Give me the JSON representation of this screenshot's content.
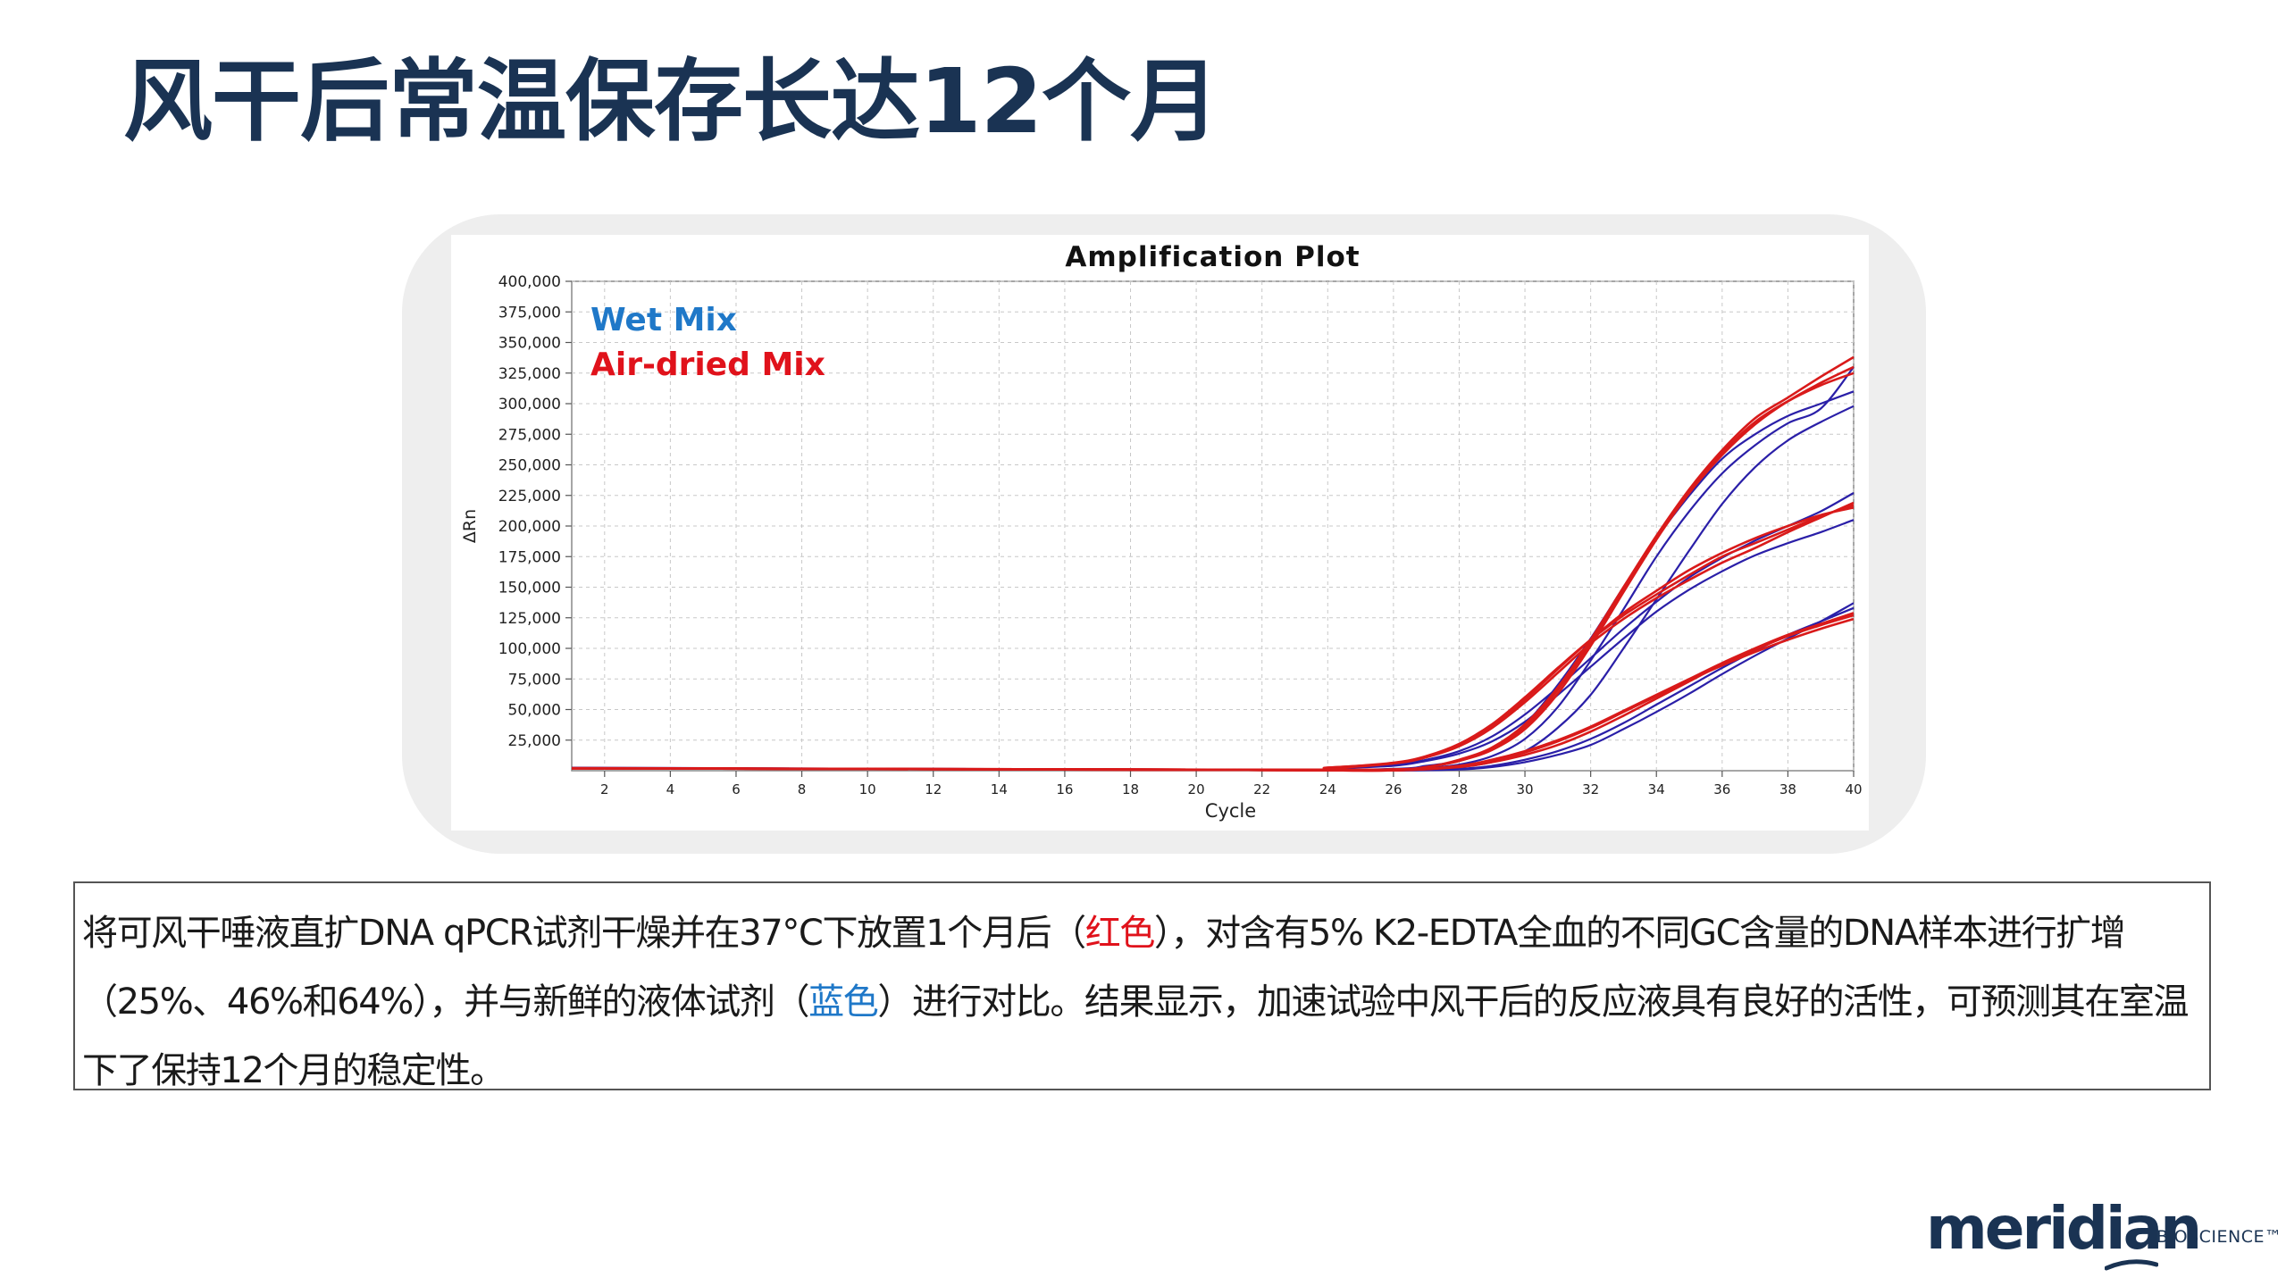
{
  "slide": {
    "title": "风干后常温保存长达12个月"
  },
  "description": {
    "part1": "将可风干唾液直扩DNA qPCR试剂干燥并在37°C下放置1个月后（",
    "red_word": "红色",
    "part2": "），对含有5% K2-EDTA全血的不同GC含量的DNA样本进行扩增（25%、46%和64%），并与新鲜的液体试剂（",
    "blue_word": "蓝色",
    "part3": "）进行对比。结果显示，加速试验中风干后的反应液具有良好的活性，可预测其在室温下了保持12个月的稳定性。"
  },
  "logo": {
    "word": "meridian",
    "sub": "BIOSCIENCE™"
  },
  "colors": {
    "title": "#1a3353",
    "wet_mix": "#1f78c8",
    "air_dried_mix": "#e0121b",
    "wet_curve": "#2a1fa8",
    "dried_curve": "#d91a1a"
  },
  "chart_data": {
    "type": "line",
    "title": "Amplification Plot",
    "xlabel": "Cycle",
    "ylabel": "ΔRn",
    "xlim": [
      1,
      40
    ],
    "ylim": [
      0,
      400000
    ],
    "x_ticks": [
      2,
      4,
      6,
      8,
      10,
      12,
      14,
      16,
      18,
      20,
      22,
      24,
      26,
      28,
      30,
      32,
      34,
      36,
      38,
      40
    ],
    "y_ticks": [
      25000,
      50000,
      75000,
      100000,
      125000,
      150000,
      175000,
      200000,
      225000,
      250000,
      275000,
      300000,
      325000,
      350000,
      375000,
      400000
    ],
    "y_tick_labels": [
      "25,000",
      "50,000",
      "75,000",
      "100,000",
      "125,000",
      "150,000",
      "175,000",
      "200,000",
      "225,000",
      "250,000",
      "275,000",
      "300,000",
      "325,000",
      "350,000",
      "375,000",
      "400,000"
    ],
    "grid": true,
    "legend": {
      "placement": "top-left",
      "entries": [
        {
          "label": "Wet Mix",
          "color": "#1f78c8"
        },
        {
          "label": "Air-dried Mix",
          "color": "#e0121b"
        }
      ]
    },
    "series": [
      {
        "group": "wet",
        "x": [
          1,
          22,
          24,
          26,
          27,
          28,
          29,
          30,
          31,
          32,
          33,
          34,
          35,
          36,
          37,
          38,
          39,
          40
        ],
        "y": [
          2000,
          800,
          2000,
          4000,
          8000,
          14000,
          24000,
          40000,
          62000,
          85000,
          108000,
          130000,
          148000,
          163000,
          176000,
          186000,
          195000,
          205000
        ]
      },
      {
        "group": "wet",
        "x": [
          1,
          22,
          24,
          26,
          27,
          28,
          29,
          30,
          31,
          32,
          33,
          34,
          35,
          36,
          37,
          38,
          39,
          40
        ],
        "y": [
          2500,
          800,
          2000,
          5000,
          9000,
          16000,
          28000,
          46000,
          68000,
          92000,
          116000,
          138000,
          158000,
          174000,
          188000,
          200000,
          212000,
          227000
        ]
      },
      {
        "group": "wet",
        "x": [
          1,
          22,
          26,
          27,
          28,
          29,
          30,
          31,
          32,
          33,
          34,
          35,
          36,
          37,
          38,
          39,
          40
        ],
        "y": [
          2200,
          800,
          1500,
          4000,
          8000,
          18000,
          38000,
          70000,
          108000,
          150000,
          190000,
          225000,
          255000,
          275000,
          290000,
          300000,
          310000
        ]
      },
      {
        "group": "wet",
        "x": [
          1,
          22,
          26,
          27,
          28,
          29,
          30,
          31,
          32,
          33,
          34,
          35,
          36,
          37,
          38,
          39,
          40
        ],
        "y": [
          2000,
          800,
          1000,
          2000,
          5000,
          12000,
          26000,
          52000,
          90000,
          132000,
          175000,
          212000,
          243000,
          266000,
          284000,
          296000,
          330000
        ]
      },
      {
        "group": "wet",
        "x": [
          1,
          22,
          26,
          27,
          28,
          29,
          30,
          31,
          32,
          33,
          34,
          35,
          36,
          37,
          38,
          39,
          40
        ],
        "y": [
          2000,
          600,
          500,
          1500,
          3000,
          7000,
          16000,
          35000,
          62000,
          100000,
          140000,
          180000,
          218000,
          248000,
          270000,
          285000,
          298000
        ]
      },
      {
        "group": "wet",
        "x": [
          1,
          22,
          26,
          28,
          29,
          30,
          31,
          32,
          33,
          34,
          35,
          36,
          37,
          38,
          39,
          40
        ],
        "y": [
          2000,
          500,
          200,
          1000,
          3000,
          7000,
          13000,
          21000,
          34000,
          48000,
          63000,
          79000,
          94000,
          108000,
          122000,
          137000
        ]
      },
      {
        "group": "wet",
        "x": [
          1,
          22,
          26,
          28,
          29,
          30,
          31,
          32,
          33,
          34,
          35,
          36,
          37,
          38,
          39,
          40
        ],
        "y": [
          2200,
          500,
          200,
          1500,
          4000,
          9000,
          16000,
          26000,
          39000,
          54000,
          69000,
          84000,
          98000,
          111000,
          122000,
          133000
        ]
      },
      {
        "group": "dried",
        "x": [
          1,
          22,
          24,
          26,
          27,
          28,
          29,
          30,
          31,
          32,
          33,
          34,
          35,
          36,
          37,
          38,
          39,
          40
        ],
        "y": [
          2000,
          800,
          2500,
          6000,
          11000,
          20000,
          35000,
          56000,
          80000,
          104000,
          124000,
          141000,
          156000,
          170000,
          182000,
          195000,
          207000,
          219000
        ]
      },
      {
        "group": "dried",
        "x": [
          1,
          22,
          24,
          26,
          27,
          28,
          29,
          30,
          31,
          32,
          33,
          34,
          35,
          36,
          37,
          38,
          39,
          40
        ],
        "y": [
          2200,
          800,
          2500,
          6500,
          12000,
          22000,
          38000,
          60000,
          84000,
          107000,
          127000,
          144000,
          160000,
          175000,
          186000,
          197000,
          208000,
          217000
        ]
      },
      {
        "group": "dried",
        "x": [
          1,
          22,
          24,
          26,
          27,
          28,
          29,
          30,
          31,
          32,
          33,
          34,
          35,
          36,
          37,
          38,
          39,
          40
        ],
        "y": [
          2000,
          800,
          2000,
          6000,
          11000,
          21000,
          36000,
          58000,
          83000,
          107000,
          129000,
          147000,
          164000,
          178000,
          190000,
          200000,
          209000,
          215000
        ]
      },
      {
        "group": "dried",
        "x": [
          1,
          22,
          26,
          27,
          28,
          29,
          30,
          31,
          32,
          33,
          34,
          35,
          36,
          37,
          38,
          39,
          40
        ],
        "y": [
          2000,
          800,
          1000,
          3000,
          9000,
          19000,
          38000,
          68000,
          107000,
          150000,
          192000,
          230000,
          262000,
          288000,
          305000,
          322000,
          338000
        ]
      },
      {
        "group": "dried",
        "x": [
          1,
          22,
          26,
          27,
          28,
          29,
          30,
          31,
          32,
          33,
          34,
          35,
          36,
          37,
          38,
          39,
          40
        ],
        "y": [
          2000,
          800,
          1000,
          3000,
          8000,
          17000,
          34000,
          63000,
          102000,
          146000,
          189000,
          227000,
          258000,
          283000,
          302000,
          317000,
          330000
        ]
      },
      {
        "group": "dried",
        "x": [
          1,
          22,
          26,
          27,
          28,
          29,
          30,
          31,
          32,
          33,
          34,
          35,
          36,
          37,
          38,
          39,
          40
        ],
        "y": [
          2000,
          800,
          1000,
          3000,
          8000,
          18000,
          36000,
          66000,
          105000,
          148000,
          191000,
          229000,
          260000,
          285000,
          302000,
          315000,
          325000
        ]
      },
      {
        "group": "dried",
        "x": [
          1,
          22,
          26,
          28,
          29,
          30,
          31,
          32,
          33,
          34,
          35,
          36,
          37,
          38,
          39,
          40
        ],
        "y": [
          2000,
          500,
          300,
          3000,
          7000,
          13000,
          21000,
          32000,
          45000,
          59000,
          73000,
          87000,
          99000,
          110000,
          119000,
          127000
        ]
      },
      {
        "group": "dried",
        "x": [
          1,
          22,
          26,
          28,
          29,
          30,
          31,
          32,
          33,
          34,
          35,
          36,
          37,
          38,
          39,
          40
        ],
        "y": [
          2000,
          500,
          300,
          3500,
          8000,
          15000,
          24000,
          35000,
          48000,
          61000,
          74000,
          86000,
          97000,
          107000,
          116000,
          124000
        ]
      },
      {
        "group": "dried",
        "x": [
          1,
          22,
          26,
          28,
          29,
          30,
          31,
          32,
          33,
          34,
          35,
          36,
          37,
          38,
          39,
          40
        ],
        "y": [
          2000,
          500,
          300,
          4000,
          9000,
          16000,
          25000,
          36000,
          49000,
          62000,
          75000,
          88000,
          100000,
          111000,
          120000,
          129000
        ]
      }
    ]
  }
}
